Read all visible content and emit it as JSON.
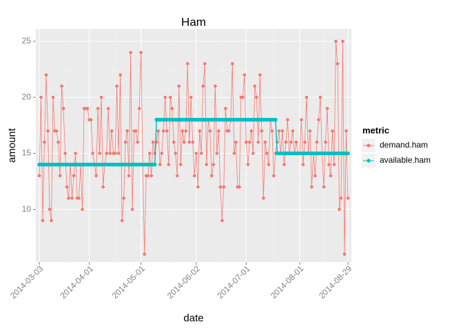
{
  "chart_data": {
    "type": "line",
    "title": "Ham",
    "x_label": "date",
    "y_label": "amount",
    "legend_title": "metric",
    "legend_position": "right",
    "grid": true,
    "x": [
      "2014-03-03",
      "2014-03-04",
      "2014-03-05",
      "2014-03-06",
      "2014-03-07",
      "2014-03-08",
      "2014-03-09",
      "2014-03-10",
      "2014-03-11",
      "2014-03-12",
      "2014-03-13",
      "2014-03-14",
      "2014-03-15",
      "2014-03-16",
      "2014-03-17",
      "2014-03-18",
      "2014-03-19",
      "2014-03-20",
      "2014-03-21",
      "2014-03-22",
      "2014-03-23",
      "2014-03-24",
      "2014-03-25",
      "2014-03-26",
      "2014-03-27",
      "2014-03-28",
      "2014-03-29",
      "2014-03-30",
      "2014-03-31",
      "2014-04-01",
      "2014-04-02",
      "2014-04-03",
      "2014-04-04",
      "2014-04-05",
      "2014-04-06",
      "2014-04-07",
      "2014-04-08",
      "2014-04-09",
      "2014-04-10",
      "2014-04-11",
      "2014-04-12",
      "2014-04-13",
      "2014-04-14",
      "2014-04-15",
      "2014-04-16",
      "2014-04-17",
      "2014-04-18",
      "2014-04-19",
      "2014-04-20",
      "2014-04-21",
      "2014-04-22",
      "2014-04-23",
      "2014-04-24",
      "2014-04-25",
      "2014-04-26",
      "2014-04-27",
      "2014-04-28",
      "2014-04-29",
      "2014-04-30",
      "2014-05-01",
      "2014-05-02",
      "2014-05-03",
      "2014-05-04",
      "2014-05-05",
      "2014-05-06",
      "2014-05-07",
      "2014-05-08",
      "2014-05-09",
      "2014-05-10",
      "2014-05-11",
      "2014-05-12",
      "2014-05-13",
      "2014-05-14",
      "2014-05-15",
      "2014-05-16",
      "2014-05-17",
      "2014-05-18",
      "2014-05-19",
      "2014-05-20",
      "2014-05-21",
      "2014-05-22",
      "2014-05-23",
      "2014-05-24",
      "2014-05-25",
      "2014-05-26",
      "2014-05-27",
      "2014-05-28",
      "2014-05-29",
      "2014-05-30",
      "2014-05-31",
      "2014-06-01",
      "2014-06-02",
      "2014-06-03",
      "2014-06-04",
      "2014-06-05",
      "2014-06-06",
      "2014-06-07",
      "2014-06-08",
      "2014-06-09",
      "2014-06-10",
      "2014-06-11",
      "2014-06-12",
      "2014-06-13",
      "2014-06-14",
      "2014-06-15",
      "2014-06-16",
      "2014-06-17",
      "2014-06-18",
      "2014-06-19",
      "2014-06-20",
      "2014-06-21",
      "2014-06-22",
      "2014-06-23",
      "2014-06-24",
      "2014-06-25",
      "2014-06-26",
      "2014-06-27",
      "2014-06-28",
      "2014-06-29",
      "2014-06-30",
      "2014-07-01",
      "2014-07-02",
      "2014-07-03",
      "2014-07-04",
      "2014-07-05",
      "2014-07-06",
      "2014-07-07",
      "2014-07-08",
      "2014-07-09",
      "2014-07-10",
      "2014-07-11",
      "2014-07-12",
      "2014-07-13",
      "2014-07-14",
      "2014-07-15",
      "2014-07-16",
      "2014-07-17",
      "2014-07-18",
      "2014-07-19",
      "2014-07-20",
      "2014-07-21",
      "2014-07-22",
      "2014-07-23",
      "2014-07-24",
      "2014-07-25",
      "2014-07-26",
      "2014-07-27",
      "2014-07-28",
      "2014-07-29",
      "2014-07-30",
      "2014-07-31",
      "2014-08-01",
      "2014-08-02",
      "2014-08-03",
      "2014-08-04",
      "2014-08-05",
      "2014-08-06",
      "2014-08-07",
      "2014-08-08",
      "2014-08-09",
      "2014-08-10",
      "2014-08-11",
      "2014-08-12",
      "2014-08-13",
      "2014-08-14",
      "2014-08-15",
      "2014-08-16",
      "2014-08-17",
      "2014-08-18",
      "2014-08-19",
      "2014-08-20",
      "2014-08-21",
      "2014-08-22",
      "2014-08-23",
      "2014-08-24",
      "2014-08-25",
      "2014-08-26",
      "2014-08-27",
      "2014-08-28",
      "2014-08-29"
    ],
    "series": [
      {
        "name": "demand.ham",
        "color": "#f8766d",
        "values": [
          13,
          20,
          9,
          16,
          22,
          17,
          10,
          9,
          20,
          17,
          17,
          16,
          13,
          21,
          19,
          15,
          12,
          11,
          14,
          11,
          13,
          15,
          11,
          11,
          14,
          10,
          19,
          19,
          19,
          18,
          18,
          15,
          14,
          13,
          19,
          15,
          20,
          12,
          14,
          15,
          19,
          15,
          17,
          15,
          15,
          21,
          15,
          22,
          9,
          11,
          16,
          17,
          13,
          24,
          10,
          17,
          17,
          16,
          19,
          24,
          14,
          6,
          13,
          13,
          15,
          13,
          16,
          15,
          16,
          17,
          14,
          15,
          17,
          20,
          17,
          14,
          20,
          19,
          16,
          15,
          13,
          21,
          14,
          17,
          16,
          17,
          23,
          16,
          20,
          16,
          13,
          15,
          12,
          17,
          15,
          21,
          23,
          14,
          18,
          17,
          13,
          14,
          21,
          15,
          17,
          12,
          9,
          12,
          19,
          17,
          17,
          18,
          23,
          15,
          16,
          12,
          12,
          20,
          20,
          22,
          16,
          14,
          16,
          17,
          15,
          21,
          20,
          16,
          22,
          17,
          11,
          16,
          15,
          14,
          18,
          17,
          13,
          15,
          16,
          17,
          15,
          17,
          14,
          16,
          18,
          15,
          16,
          17,
          15,
          16,
          15,
          15,
          18,
          14,
          16,
          20,
          15,
          17,
          12,
          15,
          13,
          16,
          18,
          20,
          15,
          12,
          16,
          19,
          14,
          13,
          17,
          14,
          25,
          23,
          10,
          11,
          25,
          6,
          17,
          11
        ]
      },
      {
        "name": "available.ham",
        "color": "#00bfc4",
        "values": [
          14,
          14,
          14,
          14,
          14,
          14,
          14,
          14,
          14,
          14,
          14,
          14,
          14,
          14,
          14,
          14,
          14,
          14,
          14,
          14,
          14,
          14,
          14,
          14,
          14,
          14,
          14,
          14,
          14,
          14,
          14,
          14,
          14,
          14,
          14,
          14,
          14,
          14,
          14,
          14,
          14,
          14,
          14,
          14,
          14,
          14,
          14,
          14,
          14,
          14,
          14,
          14,
          14,
          14,
          14,
          14,
          14,
          14,
          14,
          14,
          14,
          14,
          14,
          14,
          14,
          14,
          14,
          14,
          18,
          18,
          18,
          18,
          18,
          18,
          18,
          18,
          18,
          18,
          18,
          18,
          18,
          18,
          18,
          18,
          18,
          18,
          18,
          18,
          18,
          18,
          18,
          18,
          18,
          18,
          18,
          18,
          18,
          18,
          18,
          18,
          18,
          18,
          18,
          18,
          18,
          18,
          18,
          18,
          18,
          18,
          18,
          18,
          18,
          18,
          18,
          18,
          18,
          18,
          18,
          18,
          18,
          18,
          18,
          18,
          18,
          18,
          18,
          18,
          18,
          18,
          18,
          18,
          18,
          18,
          18,
          18,
          18,
          18,
          15,
          15,
          15,
          15,
          15,
          15,
          15,
          15,
          15,
          15,
          15,
          15,
          15,
          15,
          15,
          15,
          15,
          15,
          15,
          15,
          15,
          15,
          15,
          15,
          15,
          15,
          15,
          15,
          15,
          15,
          15,
          15,
          15,
          15,
          15,
          15,
          15,
          15,
          15,
          15,
          15,
          15
        ]
      }
    ],
    "xlim": [
      "2014-03-01",
      "2014-08-31"
    ],
    "xticks": [
      "2014-03-03",
      "2014-04-01",
      "2014-05-01",
      "2014-06-02",
      "2014-07-01",
      "2014-08-01",
      "2014-08-29"
    ],
    "ylim": [
      5.3,
      26.1
    ],
    "yticks": [
      10,
      15,
      20,
      25
    ]
  }
}
